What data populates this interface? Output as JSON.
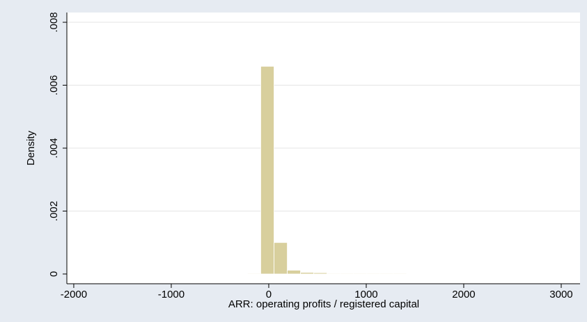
{
  "chart_data": {
    "type": "histogram",
    "xlabel": "ARR: operating profits / registered capital",
    "ylabel": "Density",
    "bins": [
      -1986,
      -1850,
      -1714,
      -1578,
      -1442,
      -1306,
      -1170,
      -1034,
      -898,
      -762,
      -626,
      -490,
      -354,
      -218,
      -82,
      54,
      190,
      326,
      462,
      598,
      734,
      870,
      1006,
      1142,
      1278,
      1414,
      1550,
      1686,
      1822,
      1958,
      2094,
      2230,
      2366,
      2502,
      2638,
      2774,
      2910,
      3046,
      3182
    ],
    "values": [
      1e-05,
      0,
      0,
      0,
      0,
      0,
      0,
      0,
      0,
      0,
      1e-05,
      1e-05,
      1e-05,
      2e-05,
      0.0066,
      0.001,
      0.00012,
      5e-05,
      4e-05,
      2e-05,
      2e-05,
      2e-05,
      2e-05,
      2e-05,
      2e-05,
      0,
      1e-05,
      0,
      0,
      0,
      0,
      0,
      0,
      0,
      1e-05,
      0,
      0,
      1e-05
    ],
    "color": "#d8cf9d",
    "xlim": [
      -2071,
      3193
    ],
    "ylim": [
      -0.00031,
      0.00831
    ],
    "xticks": [
      -2000,
      -1000,
      0,
      1000,
      2000,
      3000
    ],
    "yticks": [
      0,
      {
        "value": 0.002,
        "label": ".002"
      },
      {
        "value": 0.004,
        "label": ".004"
      },
      {
        "value": 0.006,
        "label": ".006"
      },
      {
        "value": 0.008,
        "label": ".008"
      }
    ],
    "grid": true
  }
}
